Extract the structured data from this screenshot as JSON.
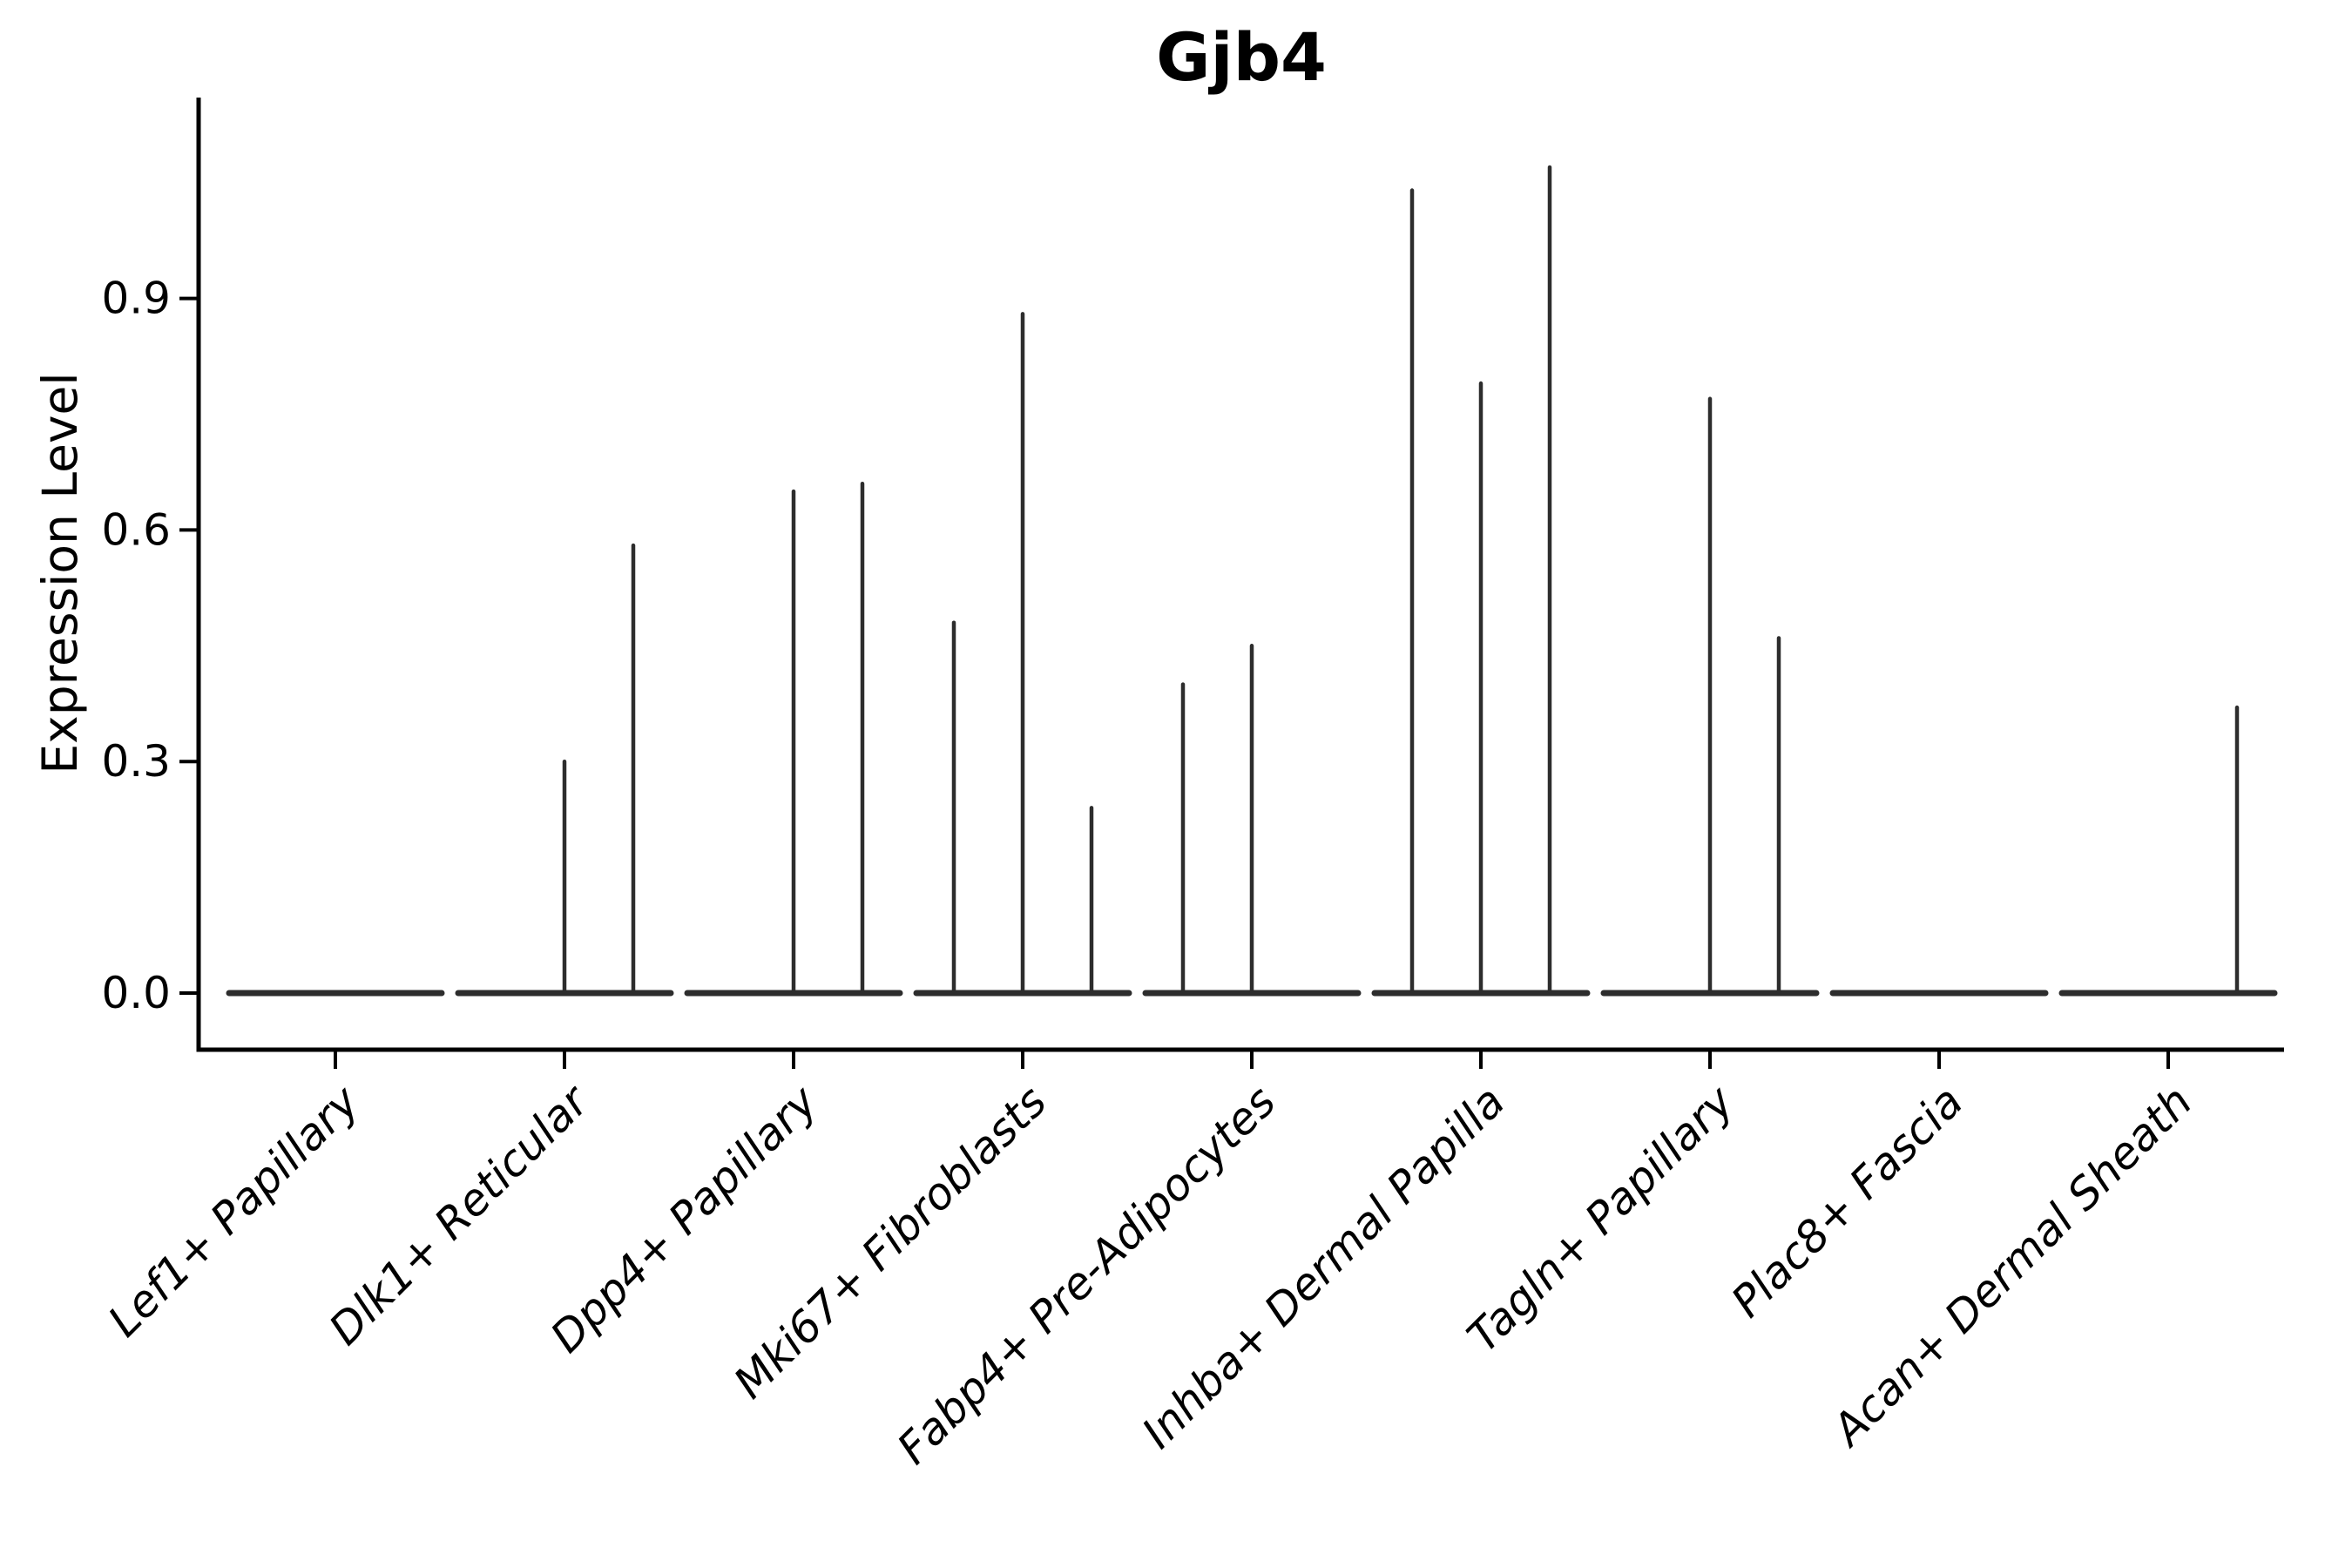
{
  "title": "Gjb4",
  "axes": {
    "ylabel": "Expression Level",
    "ytick_labels": [
      "0.0",
      "0.3",
      "0.6",
      "0.9"
    ],
    "ytick_values": [
      0.0,
      0.3,
      0.6,
      0.9
    ]
  },
  "colors": {
    "violin_stroke": "#2d2d2d",
    "axis": "#000000",
    "background": "#ffffff"
  },
  "chart_data": {
    "type": "violin",
    "title": "Gjb4",
    "xlabel": "",
    "ylabel": "Expression Level",
    "ylim": [
      -0.073,
      1.16
    ],
    "yticks": [
      0.0,
      0.3,
      0.6,
      0.9
    ],
    "grid": false,
    "legend_position": "none",
    "note": "Each category holds 3 thin sub-violins (left/center/right); violins are flat at 0 with narrow spikes reaching the max expression value listed; 0 means no spike (fully flat).",
    "categories": [
      "Lef1+ Papillary",
      "Dlk1+ Reticular",
      "Dpp4+ Papillary",
      "Mki67+ Fibroblasts",
      "Fabp4+ Pre-Adipocytes",
      "Inhba+ Dermal Papilla",
      "Tagln+ Papillary",
      "Plac8+ Fascia",
      "Acan+ Dermal Sheath"
    ],
    "subgroups": [
      "left",
      "center",
      "right"
    ],
    "series": [
      {
        "category": "Lef1+ Papillary",
        "spike_max": {
          "left": 0,
          "center": 0,
          "right": 0
        }
      },
      {
        "category": "Dlk1+ Reticular",
        "spike_max": {
          "left": 0,
          "center": 0.3,
          "right": 0.58
        }
      },
      {
        "category": "Dpp4+ Papillary",
        "spike_max": {
          "left": 0,
          "center": 0.65,
          "right": 0.66
        }
      },
      {
        "category": "Mki67+ Fibroblasts",
        "spike_max": {
          "left": 0.48,
          "center": 0.88,
          "right": 0.24
        }
      },
      {
        "category": "Fabp4+ Pre-Adipocytes",
        "spike_max": {
          "left": 0.4,
          "center": 0.45,
          "right": 0
        }
      },
      {
        "category": "Inhba+ Dermal Papilla",
        "spike_max": {
          "left": 1.04,
          "center": 0.79,
          "right": 1.07
        }
      },
      {
        "category": "Tagln+ Papillary",
        "spike_max": {
          "left": 0,
          "center": 0.77,
          "right": 0.46
        }
      },
      {
        "category": "Plac8+ Fascia",
        "spike_max": {
          "left": 0,
          "center": 0,
          "right": 0
        }
      },
      {
        "category": "Acan+ Dermal Sheath",
        "spike_max": {
          "left": 0,
          "center": 0,
          "right": 0.37
        }
      }
    ]
  }
}
